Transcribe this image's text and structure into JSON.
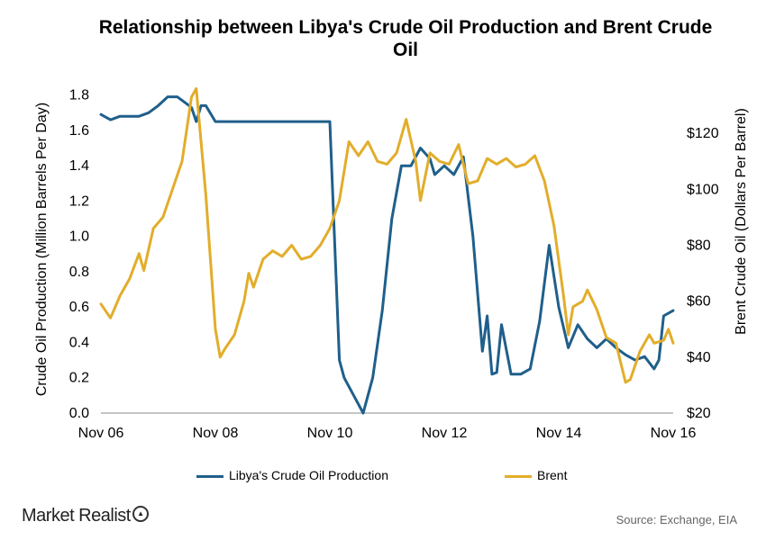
{
  "chart_data": {
    "type": "line",
    "title": "Relationship between Libya's Crude Oil Production and Brent Crude Oil",
    "ylabel_left": "Crude Oil Production  (Million Barrels Per Day)",
    "ylabel_right": "Brent Crude Oil (Dollars Per Barrel)",
    "x_ticks": [
      "Nov 06",
      "Nov 08",
      "Nov 10",
      "Nov 12",
      "Nov 14",
      "Nov 16"
    ],
    "x_range": [
      "2006-11",
      "2016-11"
    ],
    "y_left_range": [
      0.0,
      1.9
    ],
    "y_left_ticks": [
      "0.0",
      "0.2",
      "0.4",
      "0.6",
      "0.8",
      "1.0",
      "1.2",
      "1.4",
      "1.6",
      "1.8"
    ],
    "y_right_range": [
      20,
      140
    ],
    "y_right_ticks": [
      "$20",
      "$40",
      "$60",
      "$80",
      "$100",
      "$120"
    ],
    "grid": false,
    "legend_position": "bottom",
    "series": [
      {
        "name": "Libya's Crude Oil Production",
        "axis": "left",
        "color": "#1f5f8b",
        "points": [
          [
            "2006-11",
            1.69
          ],
          [
            "2007-01",
            1.66
          ],
          [
            "2007-03",
            1.68
          ],
          [
            "2007-05",
            1.68
          ],
          [
            "2007-07",
            1.68
          ],
          [
            "2007-09",
            1.7
          ],
          [
            "2007-11",
            1.74
          ],
          [
            "2008-01",
            1.79
          ],
          [
            "2008-03",
            1.79
          ],
          [
            "2008-05",
            1.75
          ],
          [
            "2008-06",
            1.73
          ],
          [
            "2008-07",
            1.65
          ],
          [
            "2008-08",
            1.74
          ],
          [
            "2008-09",
            1.74
          ],
          [
            "2008-11",
            1.65
          ],
          [
            "2010-11",
            1.65
          ],
          [
            "2011-01",
            0.3
          ],
          [
            "2011-02",
            0.2
          ],
          [
            "2011-04",
            0.1
          ],
          [
            "2011-06",
            0.0
          ],
          [
            "2011-08",
            0.2
          ],
          [
            "2011-10",
            0.58
          ],
          [
            "2011-12",
            1.1
          ],
          [
            "2012-02",
            1.4
          ],
          [
            "2012-04",
            1.4
          ],
          [
            "2012-06",
            1.5
          ],
          [
            "2012-08",
            1.44
          ],
          [
            "2012-09",
            1.35
          ],
          [
            "2012-11",
            1.4
          ],
          [
            "2013-01",
            1.35
          ],
          [
            "2013-03",
            1.45
          ],
          [
            "2013-05",
            1.0
          ],
          [
            "2013-07",
            0.35
          ],
          [
            "2013-08",
            0.55
          ],
          [
            "2013-09",
            0.22
          ],
          [
            "2013-10",
            0.23
          ],
          [
            "2013-11",
            0.5
          ],
          [
            "2014-01",
            0.22
          ],
          [
            "2014-03",
            0.22
          ],
          [
            "2014-05",
            0.25
          ],
          [
            "2014-07",
            0.52
          ],
          [
            "2014-09",
            0.95
          ],
          [
            "2014-11",
            0.6
          ],
          [
            "2015-01",
            0.37
          ],
          [
            "2015-03",
            0.5
          ],
          [
            "2015-05",
            0.42
          ],
          [
            "2015-07",
            0.37
          ],
          [
            "2015-09",
            0.42
          ],
          [
            "2015-11",
            0.37
          ],
          [
            "2016-01",
            0.33
          ],
          [
            "2016-03",
            0.3
          ],
          [
            "2016-05",
            0.32
          ],
          [
            "2016-07",
            0.25
          ],
          [
            "2016-08",
            0.3
          ],
          [
            "2016-09",
            0.55
          ],
          [
            "2016-11",
            0.58
          ]
        ]
      },
      {
        "name": "Brent",
        "axis": "right",
        "color": "#e2ad2b",
        "points": [
          [
            "2006-11",
            59
          ],
          [
            "2007-01",
            54
          ],
          [
            "2007-03",
            62
          ],
          [
            "2007-05",
            68
          ],
          [
            "2007-07",
            77
          ],
          [
            "2007-08",
            71
          ],
          [
            "2007-10",
            86
          ],
          [
            "2007-12",
            90
          ],
          [
            "2008-02",
            100
          ],
          [
            "2008-04",
            110
          ],
          [
            "2008-06",
            133
          ],
          [
            "2008-07",
            136
          ],
          [
            "2008-09",
            98
          ],
          [
            "2008-11",
            50
          ],
          [
            "2008-12",
            40
          ],
          [
            "2009-01",
            43
          ],
          [
            "2009-03",
            48
          ],
          [
            "2009-05",
            60
          ],
          [
            "2009-06",
            70
          ],
          [
            "2009-07",
            65
          ],
          [
            "2009-09",
            75
          ],
          [
            "2009-11",
            78
          ],
          [
            "2010-01",
            76
          ],
          [
            "2010-03",
            80
          ],
          [
            "2010-05",
            75
          ],
          [
            "2010-07",
            76
          ],
          [
            "2010-09",
            80
          ],
          [
            "2010-11",
            86
          ],
          [
            "2011-01",
            96
          ],
          [
            "2011-03",
            117
          ],
          [
            "2011-05",
            112
          ],
          [
            "2011-07",
            117
          ],
          [
            "2011-09",
            110
          ],
          [
            "2011-11",
            109
          ],
          [
            "2012-01",
            113
          ],
          [
            "2012-03",
            125
          ],
          [
            "2012-05",
            110
          ],
          [
            "2012-06",
            96
          ],
          [
            "2012-08",
            113
          ],
          [
            "2012-10",
            110
          ],
          [
            "2012-12",
            109
          ],
          [
            "2013-02",
            116
          ],
          [
            "2013-03",
            109
          ],
          [
            "2013-04",
            102
          ],
          [
            "2013-06",
            103
          ],
          [
            "2013-08",
            111
          ],
          [
            "2013-10",
            109
          ],
          [
            "2013-12",
            111
          ],
          [
            "2014-02",
            108
          ],
          [
            "2014-04",
            109
          ],
          [
            "2014-06",
            112
          ],
          [
            "2014-08",
            103
          ],
          [
            "2014-10",
            87
          ],
          [
            "2014-12",
            62
          ],
          [
            "2015-01",
            48
          ],
          [
            "2015-02",
            58
          ],
          [
            "2015-04",
            60
          ],
          [
            "2015-05",
            64
          ],
          [
            "2015-07",
            57
          ],
          [
            "2015-09",
            47
          ],
          [
            "2015-11",
            45
          ],
          [
            "2016-01",
            31
          ],
          [
            "2016-02",
            32
          ],
          [
            "2016-04",
            42
          ],
          [
            "2016-06",
            48
          ],
          [
            "2016-07",
            45
          ],
          [
            "2016-09",
            46
          ],
          [
            "2016-10",
            50
          ],
          [
            "2016-11",
            45
          ]
        ]
      }
    ]
  },
  "footer": {
    "brand": "Market Realist",
    "brand_icon": "magnifier-chart-icon",
    "source": "Source: Exchange, EIA"
  }
}
